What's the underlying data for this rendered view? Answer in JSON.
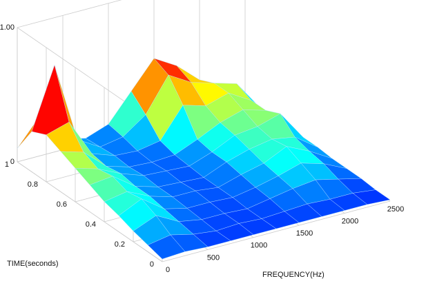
{
  "chart_data": {
    "type": "surface",
    "x_label": "FREQUENCY(Hz)",
    "y_label": "TIME(seconds)",
    "x": [
      0,
      250,
      500,
      750,
      1000,
      1250,
      1500,
      1750,
      2000,
      2250,
      2500
    ],
    "y": [
      0,
      0.1,
      0.2,
      0.3,
      0.4,
      0.5,
      0.6,
      0.7,
      0.8,
      0.9,
      1
    ],
    "z": [
      [
        0.02,
        0.03,
        0.02,
        0.02,
        0.02,
        0.02,
        0.02,
        0.02,
        0.02,
        0.02,
        0.01
      ],
      [
        0.05,
        0.08,
        0.04,
        0.02,
        0.03,
        0.02,
        0.03,
        0.04,
        0.03,
        0.03,
        0.01
      ],
      [
        0.08,
        0.15,
        0.06,
        0.03,
        0.03,
        0.02,
        0.05,
        0.08,
        0.1,
        0.06,
        0.02
      ],
      [
        0.12,
        0.2,
        0.08,
        0.04,
        0.04,
        0.03,
        0.06,
        0.1,
        0.15,
        0.1,
        0.02
      ],
      [
        0.15,
        0.18,
        0.1,
        0.05,
        0.05,
        0.03,
        0.08,
        0.12,
        0.2,
        0.12,
        0.02
      ],
      [
        0.2,
        0.22,
        0.1,
        0.05,
        0.04,
        0.03,
        0.1,
        0.15,
        0.18,
        0.15,
        0.03
      ],
      [
        0.25,
        0.2,
        0.12,
        0.06,
        0.05,
        0.04,
        0.1,
        0.18,
        0.2,
        0.25,
        0.03
      ],
      [
        0.3,
        0.25,
        0.1,
        0.05,
        0.04,
        0.05,
        0.12,
        0.2,
        0.25,
        0.2,
        0.03
      ],
      [
        0.35,
        0.4,
        0.12,
        0.06,
        0.05,
        0.08,
        0.3,
        0.25,
        0.3,
        0.2,
        0.03
      ],
      [
        0.3,
        0.75,
        0.15,
        0.05,
        0.08,
        0.2,
        0.45,
        0.35,
        0.3,
        0.25,
        0.03
      ],
      [
        0.1,
        0.3,
        0.08,
        0.04,
        0.1,
        0.3,
        0.5,
        0.4,
        0.25,
        0.15,
        0.02
      ]
    ],
    "xlim": [
      0,
      2500
    ],
    "ylim": [
      0,
      1
    ],
    "zlim": [
      0,
      1
    ],
    "xticks": [
      0,
      500,
      1000,
      1500,
      2000,
      2500
    ],
    "yticks": [
      0,
      0.2,
      0.4,
      0.6,
      0.8,
      1
    ],
    "zticks": [
      0,
      {
        "value": 1,
        "label": "1.00"
      }
    ],
    "grid": true
  }
}
